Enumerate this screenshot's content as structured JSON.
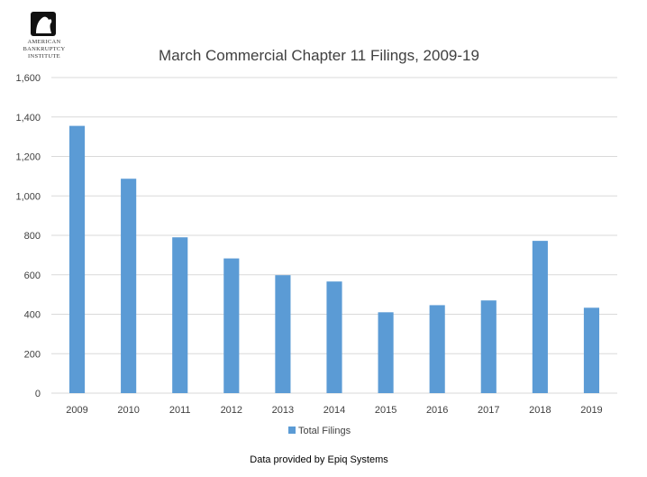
{
  "logo": {
    "lines": [
      "AMERICAN",
      "BANKRUPTCY",
      "INSTITUTE"
    ]
  },
  "chart_data": {
    "type": "bar",
    "title": "March Commercial Chapter 11 Filings, 2009-19",
    "categories": [
      "2009",
      "2010",
      "2011",
      "2012",
      "2013",
      "2014",
      "2015",
      "2016",
      "2017",
      "2018",
      "2019"
    ],
    "series": [
      {
        "name": "Total Filings",
        "values": [
          1355,
          1087,
          790,
          683,
          598,
          566,
          410,
          446,
          470,
          772,
          433
        ],
        "color": "#5b9bd5"
      }
    ],
    "ylim": [
      0,
      1600
    ],
    "yticks": [
      0,
      200,
      400,
      600,
      800,
      1000,
      1200,
      1400,
      1600
    ],
    "ytick_labels": [
      "0",
      "200",
      "400",
      "600",
      "800",
      "1,000",
      "1,200",
      "1,400",
      "1,600"
    ],
    "grid": true,
    "legend_position": "bottom"
  },
  "credit": "Data provided by Epiq Systems"
}
